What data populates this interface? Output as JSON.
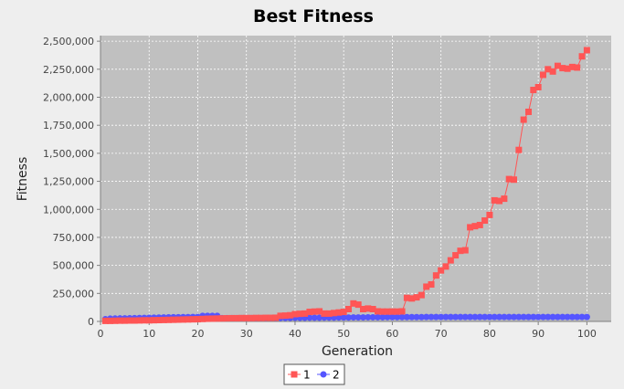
{
  "chart_data": {
    "type": "line",
    "title": "Best Fitness",
    "xlabel": "Generation",
    "ylabel": "Fitness",
    "xlim": [
      0,
      105
    ],
    "ylim": [
      0,
      2550000
    ],
    "x_ticks": [
      0,
      10,
      20,
      30,
      40,
      50,
      60,
      70,
      80,
      90,
      100
    ],
    "y_ticks": [
      0,
      250000,
      500000,
      750000,
      1000000,
      1250000,
      1500000,
      1750000,
      2000000,
      2250000,
      2500000
    ],
    "x_tick_labels": [
      "0",
      "10",
      "20",
      "30",
      "40",
      "50",
      "60",
      "70",
      "80",
      "90",
      "100"
    ],
    "y_tick_labels": [
      "0",
      "250,000",
      "500,000",
      "750,000",
      "1,000,000",
      "1,250,000",
      "1,500,000",
      "1,750,000",
      "2,000,000",
      "2,250,000",
      "2,500,000"
    ],
    "grid": true,
    "legend_position": "bottom",
    "plot_background": "#c0c0c0",
    "series": [
      {
        "name": "1",
        "color": "#ff5555",
        "marker": "square",
        "x": [
          1,
          2,
          3,
          4,
          5,
          6,
          7,
          8,
          9,
          10,
          11,
          12,
          13,
          14,
          15,
          16,
          17,
          18,
          19,
          20,
          21,
          22,
          23,
          24,
          25,
          26,
          27,
          28,
          29,
          30,
          31,
          32,
          33,
          34,
          35,
          36,
          37,
          38,
          39,
          40,
          41,
          42,
          43,
          44,
          45,
          46,
          47,
          48,
          49,
          50,
          51,
          52,
          53,
          54,
          55,
          56,
          57,
          58,
          59,
          60,
          61,
          62,
          63,
          64,
          65,
          66,
          67,
          68,
          69,
          70,
          71,
          72,
          73,
          74,
          75,
          76,
          77,
          78,
          79,
          80,
          81,
          82,
          83,
          84,
          85,
          86,
          87,
          88,
          89,
          90,
          91,
          92,
          93,
          94,
          95,
          96,
          97,
          98,
          99,
          100
        ],
        "values": [
          5000,
          5000,
          6000,
          7000,
          7000,
          8000,
          8000,
          9000,
          10000,
          10000,
          11000,
          12000,
          13000,
          14000,
          15000,
          16000,
          17000,
          18000,
          19000,
          20000,
          22000,
          24000,
          25000,
          26000,
          27000,
          28000,
          29000,
          29000,
          30000,
          30000,
          30000,
          31000,
          31000,
          32000,
          32000,
          33000,
          50000,
          52000,
          55000,
          65000,
          68000,
          70000,
          85000,
          88000,
          90000,
          70000,
          70000,
          75000,
          80000,
          85000,
          110000,
          160000,
          150000,
          110000,
          115000,
          110000,
          90000,
          88000,
          88000,
          88000,
          88000,
          90000,
          210000,
          205000,
          215000,
          235000,
          310000,
          330000,
          410000,
          455000,
          490000,
          545000,
          590000,
          630000,
          635000,
          840000,
          850000,
          860000,
          900000,
          950000,
          1080000,
          1075000,
          1095000,
          1270000,
          1265000,
          1530000,
          1800000,
          1870000,
          2065000,
          2090000,
          2200000,
          2250000,
          2230000,
          2280000,
          2260000,
          2255000,
          2270000,
          2265000,
          2365000,
          2420000
        ]
      },
      {
        "name": "2",
        "color": "#5555ff",
        "marker": "circle",
        "x": [
          1,
          2,
          3,
          4,
          5,
          6,
          7,
          8,
          9,
          10,
          11,
          12,
          13,
          14,
          15,
          16,
          17,
          18,
          19,
          20,
          21,
          22,
          23,
          24,
          25,
          26,
          27,
          28,
          29,
          30,
          31,
          32,
          33,
          34,
          35,
          36,
          37,
          38,
          39,
          40,
          41,
          42,
          43,
          44,
          45,
          46,
          47,
          48,
          49,
          50,
          51,
          52,
          53,
          54,
          55,
          56,
          57,
          58,
          59,
          60,
          61,
          62,
          63,
          64,
          65,
          66,
          67,
          68,
          69,
          70,
          71,
          72,
          73,
          74,
          75,
          76,
          77,
          78,
          79,
          80,
          81,
          82,
          83,
          84,
          85,
          86,
          87,
          88,
          89,
          90,
          91,
          92,
          93,
          94,
          95,
          96,
          97,
          98,
          99,
          100
        ],
        "values": [
          20000,
          25000,
          26000,
          27000,
          28000,
          29000,
          30000,
          31000,
          32000,
          33000,
          34000,
          35000,
          36000,
          37000,
          38000,
          38000,
          39000,
          39000,
          40000,
          40000,
          50000,
          50000,
          50000,
          50000,
          30000,
          30000,
          30000,
          30000,
          30000,
          30000,
          30000,
          30000,
          30000,
          30000,
          30000,
          30000,
          31000,
          31000,
          31000,
          32000,
          32000,
          32000,
          33000,
          33000,
          33000,
          34000,
          34000,
          34000,
          35000,
          35000,
          35000,
          36000,
          36000,
          36000,
          37000,
          37000,
          37000,
          37000,
          38000,
          38000,
          38000,
          38000,
          39000,
          39000,
          39000,
          39000,
          40000,
          40000,
          40000,
          40000,
          40000,
          40000,
          40000,
          40000,
          40000,
          40000,
          40000,
          40000,
          40000,
          40000,
          40000,
          40000,
          40000,
          40000,
          40000,
          40000,
          40000,
          40000,
          40000,
          40000,
          40000,
          40000,
          40000,
          40000,
          40000,
          40000,
          40000,
          40000,
          40000,
          40000
        ]
      }
    ]
  }
}
